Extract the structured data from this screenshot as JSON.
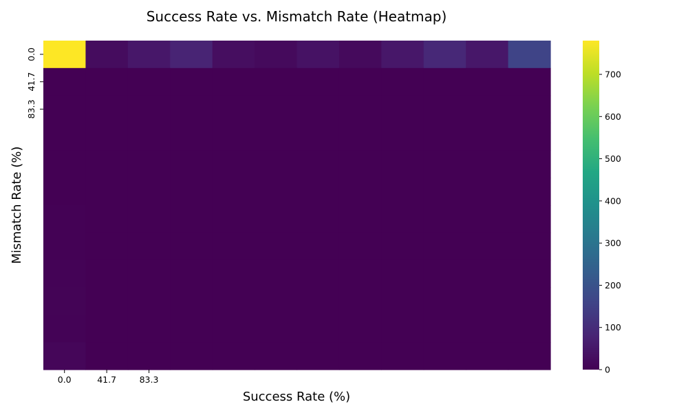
{
  "chart_data": {
    "type": "heatmap",
    "title": "Success Rate vs. Mismatch Rate (Heatmap)",
    "xlabel": "Success Rate (%)",
    "ylabel": "Mismatch Rate (%)",
    "x_tick_labels": [
      "0.0",
      "41.7",
      "83.3"
    ],
    "y_tick_labels": [
      "0.0",
      "41.7",
      "83.3"
    ],
    "n_cols": 12,
    "n_rows": 12,
    "colormap": "viridis",
    "colorbar": {
      "min": 0,
      "max": 780,
      "ticks": [
        0,
        100,
        200,
        300,
        400,
        500,
        600,
        700
      ]
    },
    "values": [
      [
        780,
        25,
        50,
        80,
        30,
        20,
        40,
        20,
        50,
        90,
        50,
        160
      ],
      [
        0,
        0,
        0,
        0,
        0,
        0,
        0,
        0,
        0,
        0,
        0,
        0
      ],
      [
        0,
        0,
        0,
        0,
        0,
        0,
        0,
        0,
        0,
        0,
        0,
        0
      ],
      [
        0,
        0,
        0,
        0,
        0,
        0,
        0,
        0,
        0,
        0,
        0,
        0
      ],
      [
        0,
        0,
        0,
        0,
        0,
        0,
        0,
        0,
        0,
        0,
        0,
        0
      ],
      [
        0,
        0,
        0,
        0,
        0,
        0,
        0,
        0,
        0,
        0,
        0,
        0
      ],
      [
        2,
        0,
        0,
        0,
        0,
        0,
        0,
        0,
        0,
        0,
        0,
        0
      ],
      [
        3,
        0,
        0,
        0,
        0,
        0,
        0,
        0,
        0,
        0,
        0,
        0
      ],
      [
        4,
        0,
        0,
        0,
        0,
        0,
        0,
        0,
        0,
        0,
        0,
        0
      ],
      [
        6,
        0,
        0,
        0,
        0,
        0,
        0,
        0,
        0,
        0,
        0,
        0
      ],
      [
        5,
        0,
        0,
        0,
        0,
        0,
        0,
        0,
        0,
        0,
        0,
        0
      ],
      [
        12,
        0,
        0,
        0,
        0,
        0,
        0,
        0,
        0,
        0,
        0,
        0
      ]
    ]
  }
}
